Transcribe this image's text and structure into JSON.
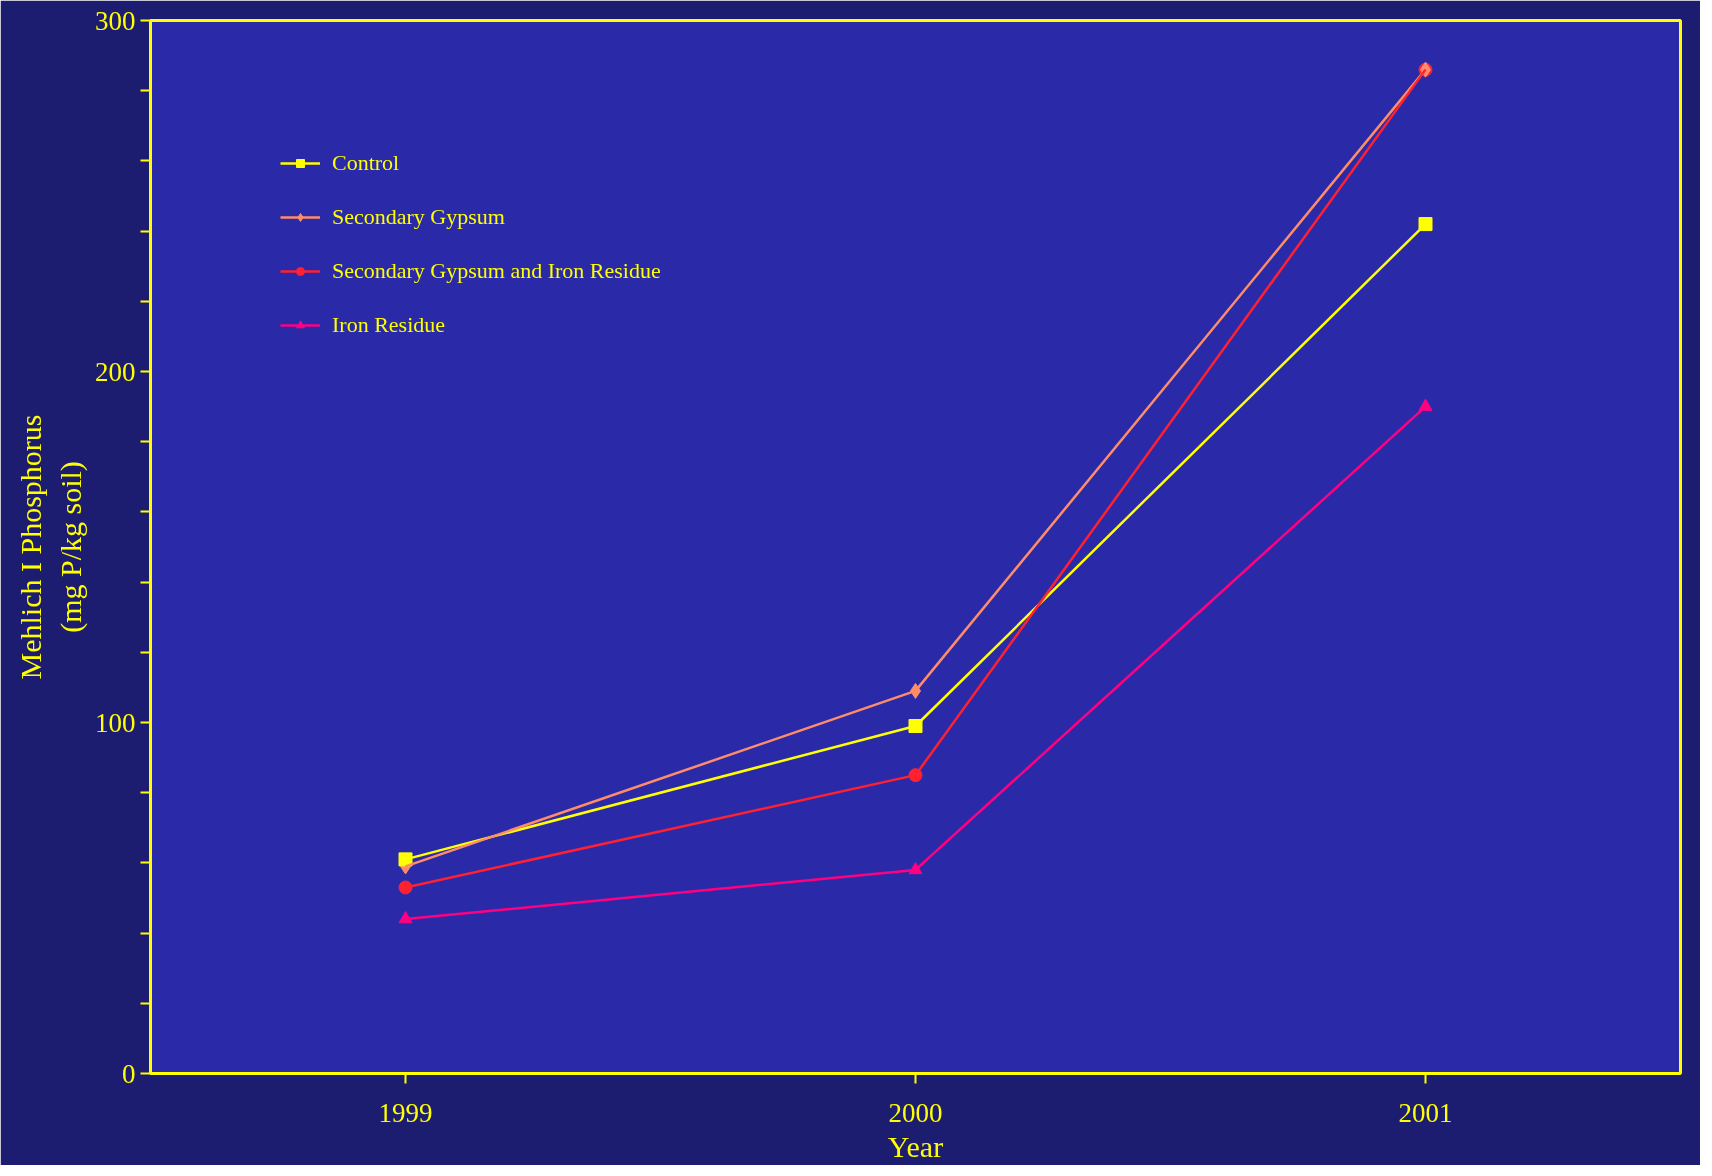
{
  "chart_data": {
    "type": "line",
    "xlabel": "Year",
    "ylabel": "Mehlich I Phosphorus\n(mg P/kg soil)",
    "x": [
      1999,
      2000,
      2001
    ],
    "xlim": [
      1998.5,
      2001.5
    ],
    "xticks": [
      1999,
      2000,
      2001
    ],
    "ylim": [
      0,
      300
    ],
    "yticks": [
      0,
      {
        "value": 20,
        "label": null
      },
      {
        "value": 40,
        "label": null
      },
      {
        "value": 60,
        "label": null
      },
      {
        "value": 80,
        "label": null
      },
      100,
      {
        "value": 120,
        "label": null
      },
      {
        "value": 140,
        "label": null
      },
      {
        "value": 160,
        "label": null
      },
      {
        "value": 180,
        "label": null
      },
      200,
      {
        "value": 220,
        "label": null
      },
      {
        "value": 240,
        "label": null
      },
      {
        "value": 260,
        "label": null
      },
      {
        "value": 280,
        "label": null
      },
      300
    ],
    "grid": false,
    "legend": "top left",
    "line_style": "solid",
    "series": [
      {
        "name": "Control",
        "color": "#ffff00",
        "marker": "square",
        "values": [
          61,
          99,
          242
        ]
      },
      {
        "name": "Secondary Gypsum",
        "color": "#ff8c69",
        "marker": "diamond",
        "values": [
          59,
          109,
          286
        ]
      },
      {
        "name": "Secondary Gypsum and Iron Residue",
        "color": "#ff2030",
        "marker": "circle",
        "values": [
          53,
          85,
          286
        ]
      },
      {
        "name": "Iron Residue",
        "color": "#ff0080",
        "marker": "triangle",
        "values": [
          44,
          58,
          190
        ]
      }
    ]
  }
}
